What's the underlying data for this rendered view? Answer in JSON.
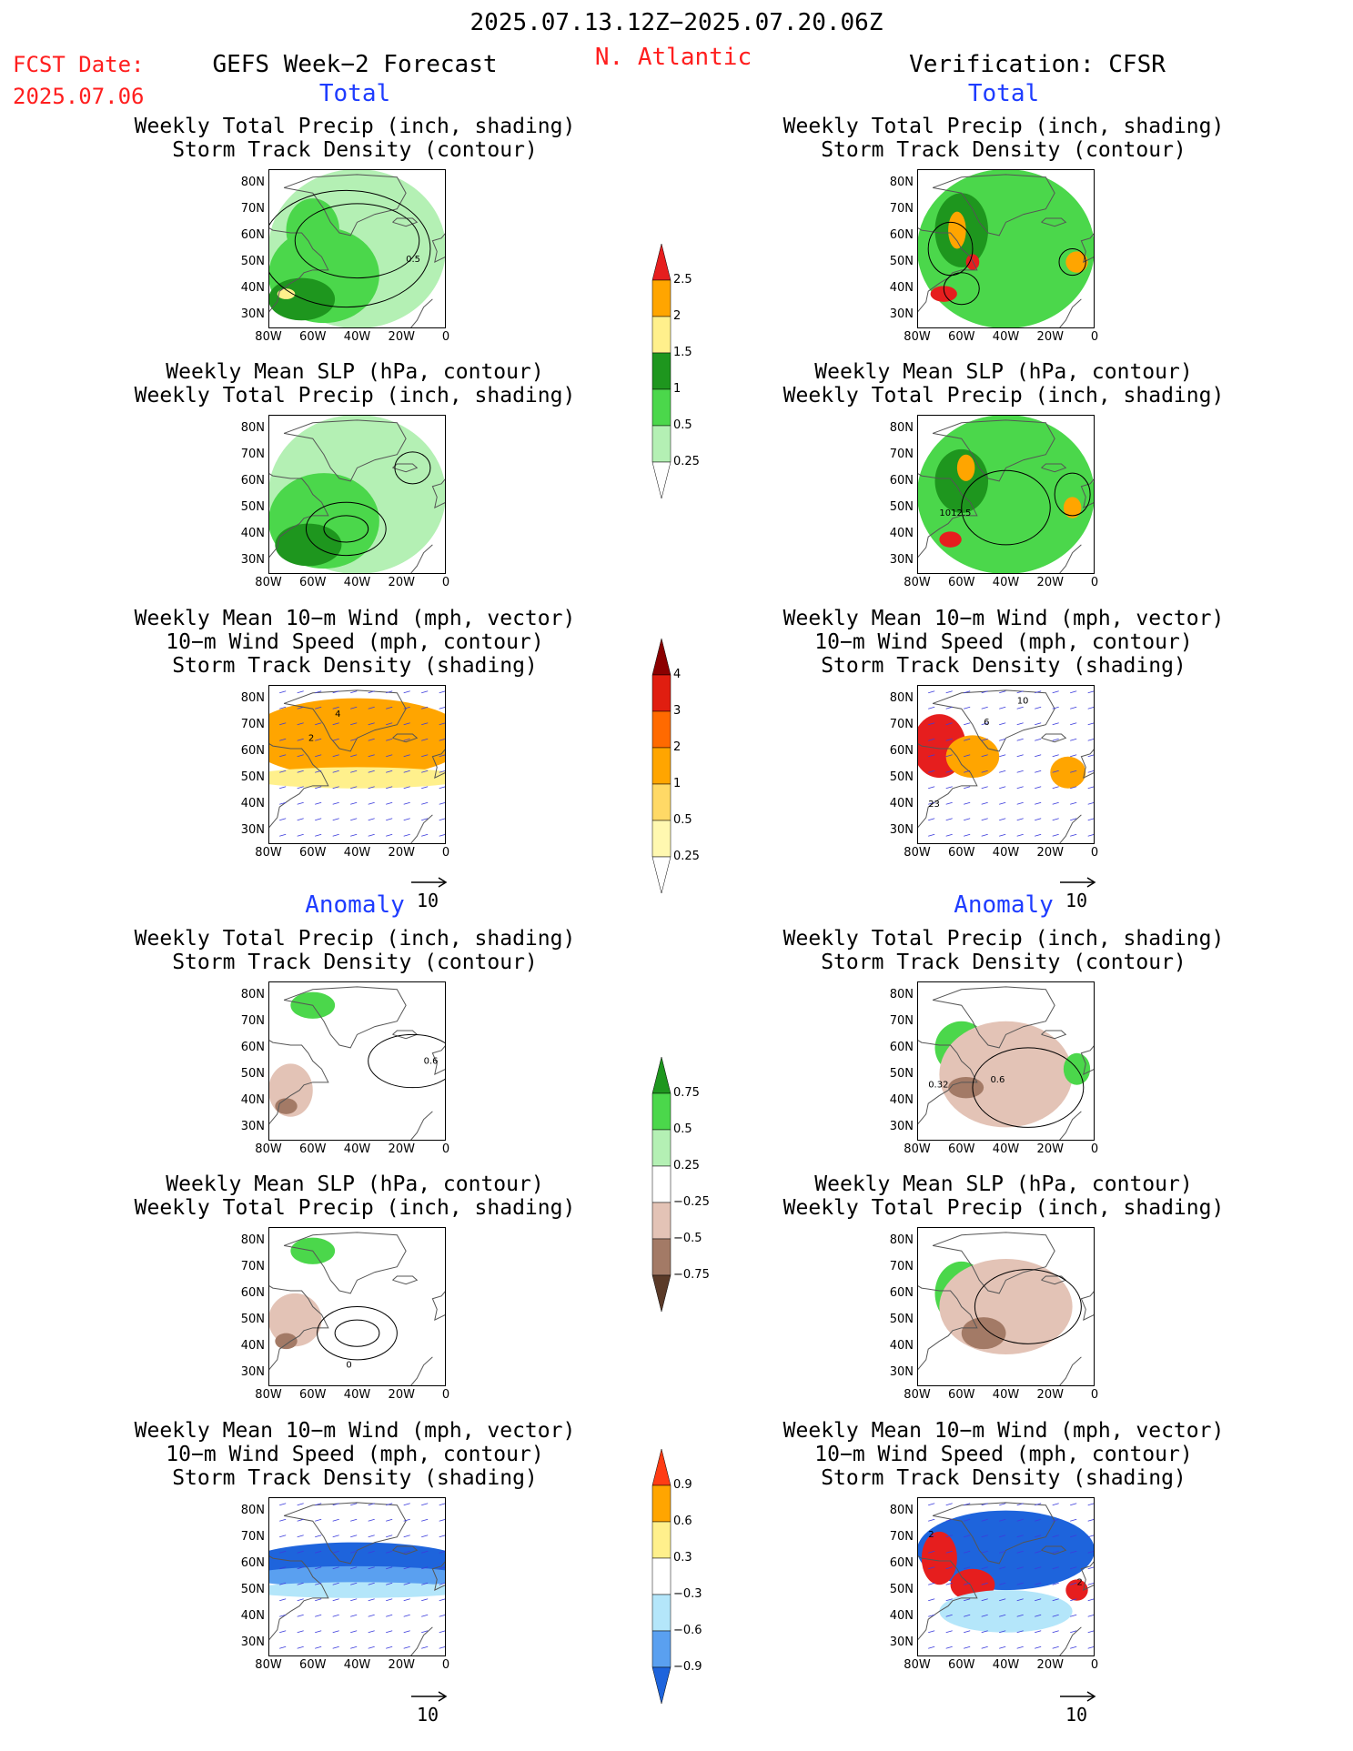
{
  "header": {
    "period": "2025.07.13.12Z−2025.07.20.06Z",
    "fcst_label": "FCST Date:",
    "fcst_date": "2025.07.06",
    "forecast_title": "GEFS Week−2 Forecast",
    "region": "N. Atlantic",
    "verification": "Verification: CFSR"
  },
  "sections": {
    "total": "Total",
    "anomaly": "Anomaly"
  },
  "titles": {
    "precip_track": [
      "Weekly Total Precip (inch, shading)",
      "Storm Track Density (contour)"
    ],
    "slp_precip": [
      "Weekly Mean SLP (hPa, contour)",
      "Weekly Total Precip (inch, shading)"
    ],
    "wind_track": [
      "Weekly Mean 10−m Wind (mph, vector)",
      "10−m Wind Speed (mph, contour)",
      "Storm Track Density (shading)"
    ]
  },
  "map_axes": {
    "lat_labels": [
      "80N",
      "70N",
      "60N",
      "50N",
      "40N",
      "30N"
    ],
    "lon_labels": [
      "80W",
      "60W",
      "40W",
      "20W",
      "0"
    ]
  },
  "vector_reference": "10",
  "contour_labels": {
    "t1_left": "0.5",
    "t2_right": "1012.5",
    "t3_left_a": "4",
    "t3_left_b": "2",
    "t3_right_a": "10",
    "t3_right_b": "6",
    "t3_right_c": "23",
    "a1_left": "0.6",
    "a1_right_a": "0.32",
    "a1_right_b": "0.6",
    "a2_left": "0",
    "a3_right_a": "2",
    "a3_right_b": "2"
  },
  "colorbars": {
    "total_precip": {
      "ticks": [
        "2.5",
        "2",
        "1.5",
        "1",
        "0.5",
        "0.25"
      ],
      "colors": [
        "#ffffff",
        "#b4f0b4",
        "#4bd74b",
        "#1e961e",
        "#fff08c",
        "#ffa500",
        "#e61e1e"
      ]
    },
    "total_track": {
      "ticks": [
        "4",
        "3",
        "2",
        "1",
        "0.5",
        "0.25"
      ],
      "colors": [
        "#ffffff",
        "#fff8b0",
        "#ffd966",
        "#ffa500",
        "#ff6a00",
        "#e01e10",
        "#8b0000"
      ]
    },
    "anom_precip": {
      "ticks": [
        "0.75",
        "0.5",
        "0.25",
        "−0.25",
        "−0.5",
        "−0.75"
      ],
      "colors": [
        "#5a3a28",
        "#a37a66",
        "#e3c3b6",
        "#ffffff",
        "#b4f0b4",
        "#4bd74b",
        "#1e961e"
      ]
    },
    "anom_track": {
      "ticks": [
        "0.9",
        "0.6",
        "0.3",
        "−0.3",
        "−0.6",
        "−0.9"
      ],
      "colors": [
        "#1e64dc",
        "#5aa0f0",
        "#b4e6fa",
        "#ffffff",
        "#fff08c",
        "#ffa500",
        "#ff3c14"
      ]
    }
  },
  "colors": {
    "header_red": "#ff1e1e",
    "section_blue": "#1e3cff",
    "land_outline": "#555555",
    "wind_vector": "#3c3cdc"
  }
}
